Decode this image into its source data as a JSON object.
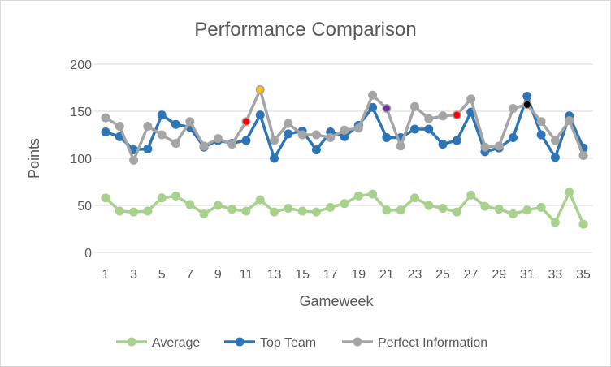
{
  "chart_data": {
    "type": "line",
    "title": "Performance Comparison",
    "xlabel": "Gameweek",
    "ylabel": "Points",
    "ylim": [
      0,
      200
    ],
    "yticks": [
      0,
      50,
      100,
      150,
      200
    ],
    "xticks": [
      1,
      3,
      5,
      7,
      9,
      11,
      13,
      15,
      17,
      19,
      21,
      23,
      25,
      27,
      29,
      31,
      33,
      35
    ],
    "x": [
      1,
      2,
      3,
      4,
      5,
      6,
      7,
      8,
      9,
      10,
      11,
      12,
      13,
      14,
      15,
      16,
      17,
      18,
      19,
      20,
      21,
      22,
      23,
      24,
      25,
      26,
      27,
      28,
      29,
      30,
      31,
      32,
      33,
      34,
      35
    ],
    "grid": true,
    "legend_position": "bottom",
    "series": [
      {
        "name": "Average",
        "color": "#a9d18e",
        "values": [
          58,
          44,
          43,
          44,
          58,
          60,
          51,
          41,
          50,
          46,
          44,
          56,
          43,
          47,
          44,
          43,
          48,
          52,
          60,
          62,
          45,
          45,
          58,
          50,
          47,
          43,
          61,
          49,
          46,
          41,
          45,
          48,
          32,
          64,
          30
        ]
      },
      {
        "name": "Top Team",
        "color": "#2e75b6",
        "values": [
          128,
          123,
          109,
          110,
          146,
          136,
          133,
          112,
          119,
          116,
          119,
          146,
          100,
          126,
          129,
          109,
          128,
          123,
          135,
          154,
          122,
          122,
          131,
          131,
          115,
          119,
          149,
          107,
          111,
          122,
          166,
          125,
          101,
          145,
          111
        ]
      },
      {
        "name": "Perfect Information",
        "color": "#a5a5a5",
        "values": [
          143,
          134,
          98,
          134,
          125,
          116,
          139,
          113,
          121,
          115,
          139,
          173,
          119,
          137,
          125,
          125,
          122,
          130,
          132,
          167,
          153,
          113,
          155,
          142,
          145,
          146,
          163,
          112,
          113,
          153,
          157,
          139,
          119,
          140,
          103
        ]
      }
    ],
    "highlights": [
      {
        "x": 11,
        "y": 139,
        "color": "#ff0000"
      },
      {
        "x": 12,
        "y": 173,
        "color": "#ffc000"
      },
      {
        "x": 21,
        "y": 153,
        "color": "#7030a0"
      },
      {
        "x": 26,
        "y": 146,
        "color": "#ff0000"
      },
      {
        "x": 31,
        "y": 157,
        "color": "#000000"
      }
    ]
  }
}
